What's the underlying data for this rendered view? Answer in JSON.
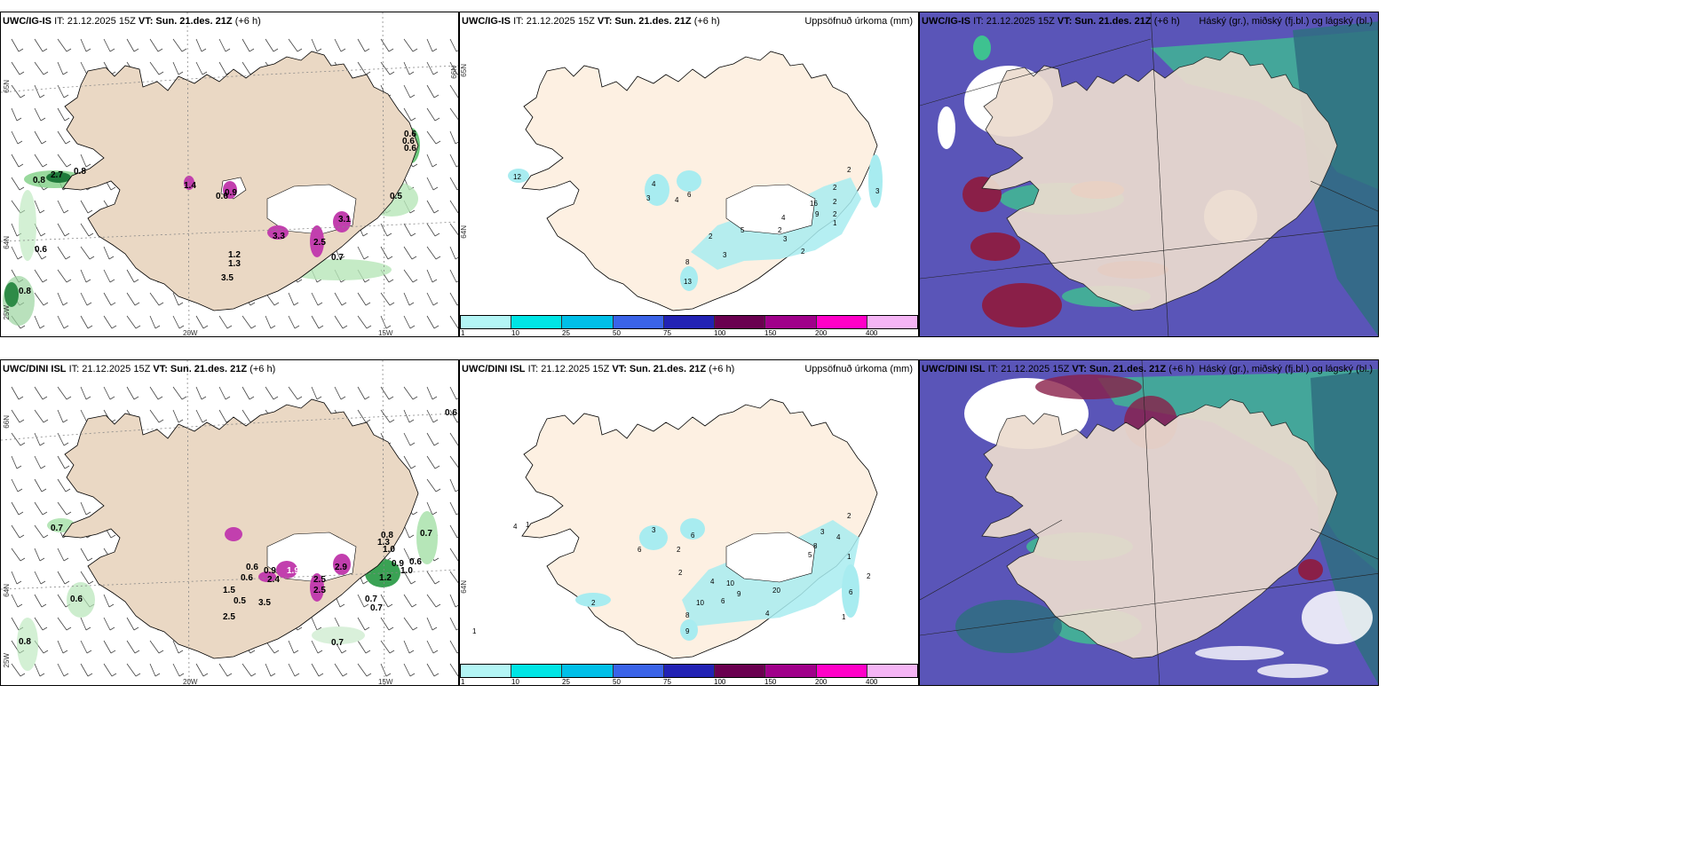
{
  "panels": {
    "top_left": {
      "model": "UWC/IG-IS",
      "it_label": "IT: 21.12.2025 15Z",
      "vt_label": "VT: Sun. 21.des. 21Z",
      "lead": "(+6 h)",
      "values": [
        "0.8",
        "2.7",
        "0.8",
        "0.6",
        "0.8",
        "0.6",
        "1.4",
        "3.3",
        "1.2",
        "1.3",
        "3.5",
        "0.9",
        "2.5",
        "3.1",
        "0.7",
        "0.6",
        "0.6",
        "0.6",
        "0.5"
      ],
      "ticks": {
        "lon1": "20W",
        "lon2": "15W",
        "lat1": "65N",
        "lat2": "64N",
        "lat3": "66N",
        "lat4": "25W"
      }
    },
    "top_mid": {
      "model": "UWC/IG-IS",
      "it_label": "IT: 21.12.2025 15Z",
      "vt_label": "VT: Sun. 21.des. 21Z",
      "lead": "(+6 h)",
      "title_right": "Uppsöfnuð úrkoma (mm)",
      "values": [
        "12",
        "4",
        "3",
        "6",
        "4",
        "2",
        "5",
        "3",
        "8",
        "13",
        "4",
        "2",
        "3",
        "16",
        "9",
        "2",
        "2",
        "2",
        "2",
        "3",
        "1",
        "2"
      ],
      "colorbar": {
        "colors": [
          "#b3f5f5",
          "#00e5e5",
          "#00bfe8",
          "#3a63e8",
          "#2222b4",
          "#6a0050",
          "#a0008a",
          "#ff00c8",
          "#f5b5f5"
        ],
        "labels": [
          "1",
          "10",
          "25",
          "50",
          "75",
          "100",
          "150",
          "200",
          "400"
        ]
      },
      "ticks": {
        "lat": "64N",
        "lat2": "65N"
      }
    },
    "top_right": {
      "model": "UWC/IG-IS",
      "it_label": "IT: 21.12.2025 15Z",
      "vt_label": "VT: Sun. 21.des. 21Z",
      "lead": "(+6 h)",
      "title_right": "Háský (gr.), miðský (fj.bl.) og lágský (bl.)"
    },
    "bottom_left": {
      "model": "UWC/DINI ISL",
      "it_label": "IT: 21.12.2025 15Z",
      "vt_label": "VT: Sun. 21.des. 21Z",
      "lead": "(+6 h)",
      "values": [
        "0.7",
        "0.6",
        "0.8",
        "0.6",
        "0.6",
        "0.9",
        "1.5",
        "0.5",
        "2.5",
        "3.5",
        "2.4",
        "1.9",
        "2.5",
        "2.9",
        "2.5",
        "0.7",
        "0.7",
        "1.3",
        "1.0",
        "0.8",
        "0.9",
        "0.6",
        "1.0",
        "0.7",
        "0.6",
        "0.7",
        "1.2"
      ],
      "ticks": {
        "lon1": "20W",
        "lon2": "15W",
        "lat1": "66N",
        "lat2": "64N",
        "lat4": "25W"
      }
    },
    "bottom_mid": {
      "model": "UWC/DINI ISL",
      "it_label": "IT: 21.12.2025 15Z",
      "vt_label": "VT: Sun. 21.des. 21Z",
      "lead": "(+6 h)",
      "title_right": "Uppsöfnuð úrkoma (mm)",
      "values": [
        "4",
        "1",
        "3",
        "6",
        "6",
        "2",
        "2",
        "4",
        "10",
        "10",
        "8",
        "6",
        "9",
        "20",
        "9",
        "4",
        "5",
        "8",
        "3",
        "4",
        "2",
        "2",
        "1",
        "6",
        "2",
        "1",
        "1"
      ],
      "colorbar": {
        "colors": [
          "#b3f5f5",
          "#00e5e5",
          "#00bfe8",
          "#3a63e8",
          "#2222b4",
          "#6a0050",
          "#a0008a",
          "#ff00c8",
          "#f5b5f5"
        ],
        "labels": [
          "1",
          "10",
          "25",
          "50",
          "75",
          "100",
          "150",
          "200",
          "400"
        ]
      },
      "ticks": {
        "lat": "64N"
      }
    },
    "bottom_right": {
      "model": "UWC/DINI ISL",
      "it_label": "IT: 21.12.2025 15Z",
      "vt_label": "VT: Sun. 21.des. 21Z",
      "lead": "(+6 h)",
      "title_right": "Háský (gr.), miðský (fj.bl.) og lágský (bl.)"
    }
  }
}
